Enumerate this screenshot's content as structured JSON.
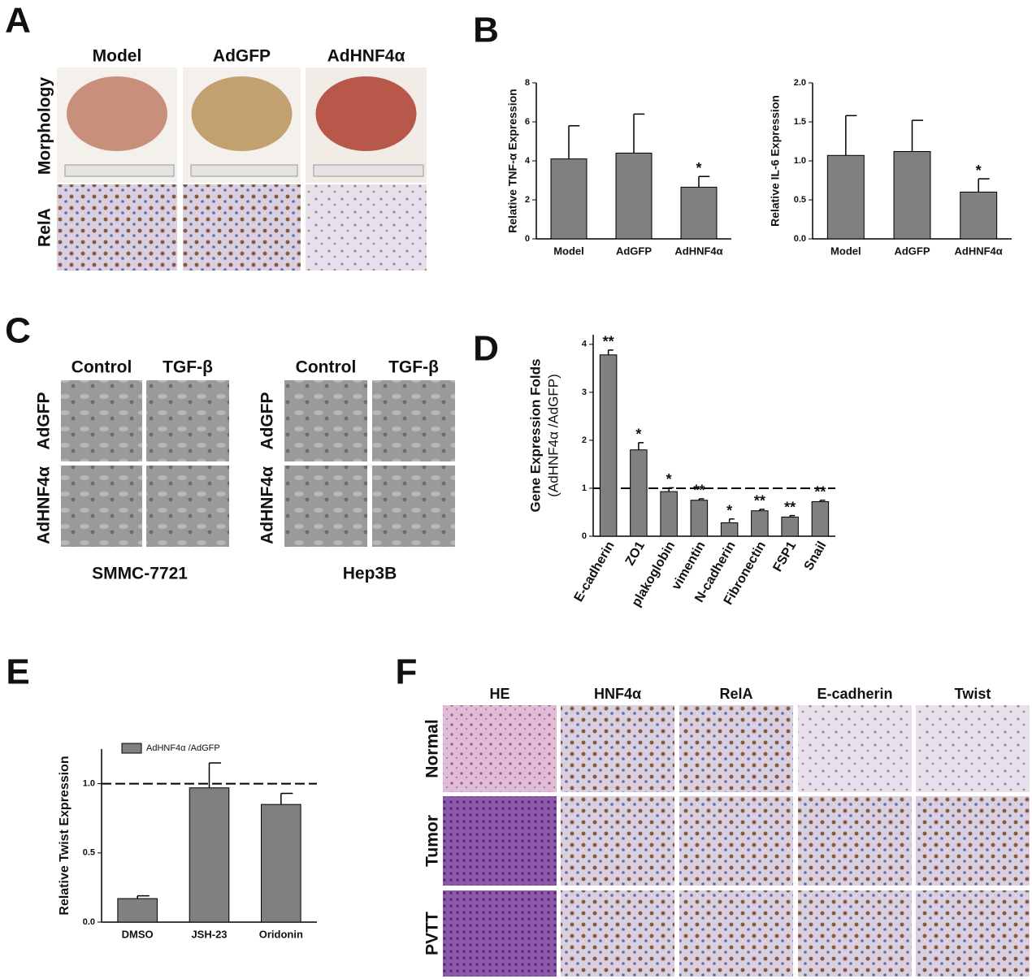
{
  "panel_labels": [
    "A",
    "B",
    "C",
    "D",
    "E",
    "F"
  ],
  "panel_a": {
    "columns": [
      "Model",
      "AdGFP",
      "AdHNF4α"
    ],
    "rows": [
      "Morphology",
      "RelA"
    ]
  },
  "panel_c": {
    "groups": [
      {
        "name": "SMMC-7721",
        "columns": [
          "Control",
          "TGF-β"
        ],
        "rows": [
          "AdGFP",
          "AdHNF4α"
        ]
      },
      {
        "name": "Hep3B",
        "columns": [
          "Control",
          "TGF-β"
        ],
        "rows": [
          "AdGFP",
          "AdHNF4α"
        ]
      }
    ]
  },
  "panel_f": {
    "columns": [
      "HE",
      "HNF4α",
      "RelA",
      "E-cadherin",
      "Twist"
    ],
    "rows": [
      "Normal",
      "Tumor",
      "PVTT"
    ]
  },
  "chart_data": [
    {
      "type": "bar",
      "y_label": "Relative TNF-α Expression",
      "categories": [
        "Model",
        "AdGFP",
        "AdHNF4α"
      ],
      "values": [
        4.1,
        4.4,
        2.65
      ],
      "errors": [
        1.7,
        2.0,
        0.55
      ],
      "significance": [
        null,
        null,
        "*"
      ],
      "color": "#808080",
      "ylim": [
        0,
        8
      ],
      "yticks": [
        0,
        2,
        4,
        6,
        8
      ]
    },
    {
      "type": "bar",
      "y_label": "Relative IL-6 Expression",
      "categories": [
        "Model",
        "AdGFP",
        "AdHNF4α"
      ],
      "values": [
        1.07,
        1.12,
        0.6
      ],
      "errors": [
        0.51,
        0.4,
        0.17
      ],
      "significance": [
        null,
        null,
        "*"
      ],
      "color": "#808080",
      "ylim": [
        0,
        2
      ],
      "yticks": [
        {
          "value": 0,
          "label": "0.0"
        },
        {
          "value": 0.5,
          "label": "0.5"
        },
        {
          "value": 1,
          "label": "1.0"
        },
        {
          "value": 1.5,
          "label": "1.5"
        },
        {
          "value": 2,
          "label": "2.0"
        }
      ]
    },
    {
      "type": "bar",
      "y_label": "Gene Expression Folds",
      "y_sublabel": "(AdHNF4α /AdGFP)",
      "categories": [
        "E-cadherin",
        "ZO1",
        "plakoglobin",
        "vimentin",
        "N-cadherin",
        "Fibronectin",
        "FSP1",
        "Snail"
      ],
      "values": [
        3.78,
        1.8,
        0.93,
        0.75,
        0.28,
        0.53,
        0.4,
        0.72
      ],
      "errors": [
        0.1,
        0.15,
        0.08,
        0.03,
        0.08,
        0.03,
        0.03,
        0.03
      ],
      "significance": [
        "**",
        "*",
        "*",
        "**",
        "*",
        "**",
        "**",
        "**"
      ],
      "color": "#808080",
      "reference_line": 1,
      "ylim": [
        0,
        4.2
      ],
      "yticks": [
        0,
        1,
        2,
        3,
        4
      ]
    },
    {
      "type": "bar",
      "y_label": "Relative Twist Expression",
      "categories": [
        "DMSO",
        "JSH-23",
        "Oridonin"
      ],
      "series": [
        {
          "name": "AdHNF4α /AdGFP",
          "color": "#808080",
          "values": [
            0.17,
            0.97,
            0.85
          ],
          "errors": [
            0.02,
            0.18,
            0.08
          ]
        }
      ],
      "reference_line": 1,
      "ylim": [
        0,
        1.25
      ],
      "yticks": [
        {
          "value": 0,
          "label": "0.0"
        },
        {
          "value": 0.5,
          "label": "0.5"
        },
        {
          "value": 1,
          "label": "1.0"
        }
      ]
    }
  ]
}
